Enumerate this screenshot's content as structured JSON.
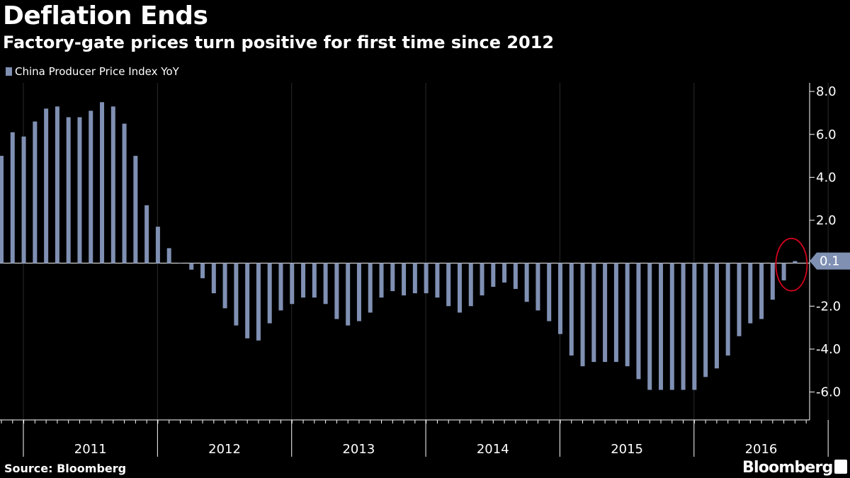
{
  "header": {
    "title": "Deflation Ends",
    "subtitle": "Factory-gate prices turn positive for first time since 2012"
  },
  "footer": {
    "source": "Source: Bloomberg",
    "brand": "Bloomberg"
  },
  "colors": {
    "background": "#000000",
    "bar": "#7f90b3",
    "highlight_circle": "#d0021b",
    "grid": "#2a2a2a"
  },
  "chart_data": {
    "type": "bar",
    "series": [
      {
        "name": "China Producer Price Index YoY",
        "values": [
          5.0,
          6.1,
          5.9,
          6.6,
          7.2,
          7.3,
          6.8,
          6.8,
          7.1,
          7.5,
          7.3,
          6.5,
          5.0,
          2.7,
          1.7,
          0.7,
          0.0,
          -0.3,
          -0.7,
          -1.4,
          -2.1,
          -2.9,
          -3.5,
          -3.6,
          -2.8,
          -2.2,
          -1.9,
          -1.6,
          -1.6,
          -1.9,
          -2.6,
          -2.9,
          -2.7,
          -2.3,
          -1.6,
          -1.3,
          -1.5,
          -1.4,
          -1.4,
          -1.6,
          -2.0,
          -2.3,
          -2.0,
          -1.5,
          -1.1,
          -0.9,
          -1.2,
          -1.8,
          -2.2,
          -2.7,
          -3.3,
          -4.3,
          -4.8,
          -4.6,
          -4.6,
          -4.6,
          -4.8,
          -5.4,
          -5.9,
          -5.9,
          -5.9,
          -5.9,
          -5.9,
          -5.3,
          -4.9,
          -4.3,
          -3.4,
          -2.8,
          -2.6,
          -1.7,
          -0.8,
          0.1
        ]
      }
    ],
    "x_axis": {
      "years": [
        "2011",
        "2012",
        "2013",
        "2014",
        "2015",
        "2016"
      ]
    },
    "y_axis": {
      "ticks": [
        "8.0",
        "6.0",
        "4.0",
        "2.0",
        "-2.0",
        "-4.0",
        "-6.0"
      ],
      "tick_values": [
        8,
        6,
        4,
        2,
        -2,
        -4,
        -6
      ],
      "range": [
        -7.3,
        8.4
      ],
      "position": "right"
    },
    "callout": {
      "label": "0.1",
      "value": 0.1
    },
    "legend": "top-left",
    "grid": "vertical"
  }
}
